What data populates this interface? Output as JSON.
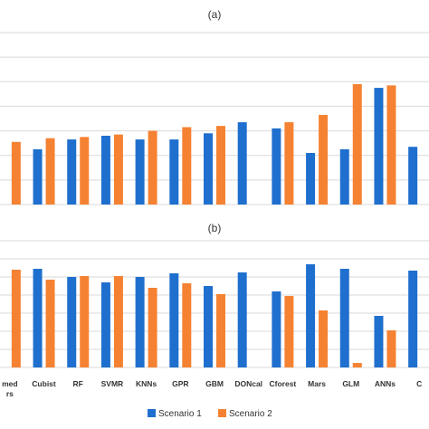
{
  "chart_data": [
    {
      "type": "bar",
      "title": "(a)",
      "categories": [
        "",
        "Cubist",
        "RF",
        "SVMR",
        "KNNs",
        "GPR",
        "GBM",
        "DONcal",
        "Cforest",
        "Mars",
        "GLM",
        "ANNs",
        ""
      ],
      "series": [
        {
          "name": "Scenario 1",
          "color": "#1f6fce",
          "values": [
            null,
            0.45,
            0.53,
            0.56,
            0.53,
            0.53,
            0.58,
            0.67,
            0.62,
            0.42,
            0.45,
            0.95,
            0.47
          ]
        },
        {
          "name": "Scenario 2",
          "color": "#f58232",
          "values": [
            0.51,
            0.54,
            0.55,
            0.57,
            0.6,
            0.63,
            0.64,
            null,
            0.67,
            0.73,
            0.98,
            0.97,
            null
          ]
        }
      ],
      "ylim": [
        0,
        1.4
      ],
      "grid": true
    },
    {
      "type": "bar",
      "title": "(b)",
      "categories": [
        "med\nrs",
        "Cubist",
        "RF",
        "SVMR",
        "KNNs",
        "GPR",
        "GBM",
        "DONcal",
        "Cforest",
        "Mars",
        "GLM",
        "ANNs",
        "C"
      ],
      "series": [
        {
          "name": "Scenario 1",
          "color": "#1f6fce",
          "values": [
            null,
            1.09,
            1.0,
            0.94,
            1.0,
            1.04,
            0.9,
            1.05,
            0.84,
            1.14,
            1.09,
            0.57,
            1.07
          ]
        },
        {
          "name": "Scenario 2",
          "color": "#f58232",
          "values": [
            1.08,
            0.97,
            1.01,
            1.01,
            0.88,
            0.93,
            0.81,
            null,
            0.79,
            0.63,
            0.05,
            0.41,
            null
          ]
        }
      ],
      "ylim": [
        0,
        1.4
      ],
      "grid": true
    }
  ],
  "legend": {
    "placement": "bottom-center",
    "items": [
      {
        "label": "Scenario 1",
        "color": "#1f6fce"
      },
      {
        "label": "Scenario 2",
        "color": "#f58232"
      }
    ]
  }
}
